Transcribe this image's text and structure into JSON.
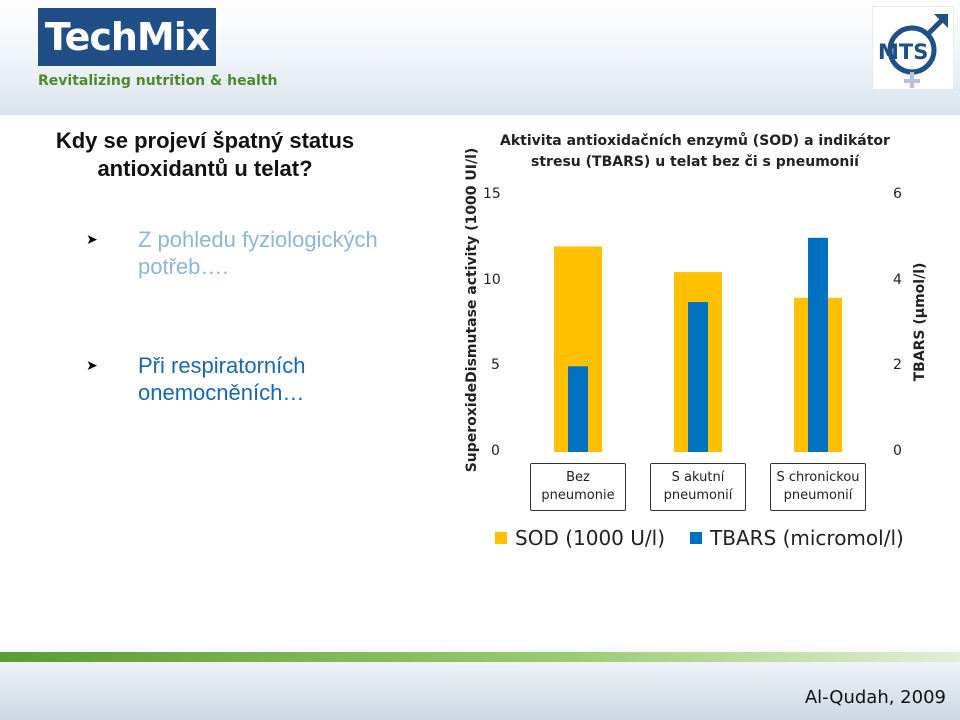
{
  "brand": {
    "logo_text": "TechMix",
    "tagline": "Revitalizing nutrition & health",
    "partner_logo": "MTS",
    "colors": {
      "navy": "#1f4f86",
      "green": "#4e8a2c"
    }
  },
  "slide": {
    "title": "Kdy se projeví špatný status antioxidantů u telat?",
    "bullets": [
      {
        "text": "Z pohledu fyziologických potřeb….",
        "color": "#8fb6d8"
      },
      {
        "text": "Při respiratorních onemocněních…",
        "color": "#1a66b0"
      }
    ],
    "citation": "Al-Qudah, 2009"
  },
  "chart_data": {
    "type": "bar",
    "title": "Aktivita antioxidačních enzymů (SOD) a indikátor stresu (TBARS) u telat bez či s pneumonií",
    "categories": [
      "Bez pneumonie",
      "S akutní pneumonií",
      "S chronickou pneumonií"
    ],
    "ylabel": "SuperoxideDismutase activity (1000 UI/l)",
    "y2label": "TBARS (µmol/l)",
    "ylim": [
      0,
      15
    ],
    "y2lim": [
      0,
      6
    ],
    "yticks": [
      0,
      5,
      10,
      15
    ],
    "y2ticks": [
      0,
      2,
      4,
      6
    ],
    "grid": false,
    "legend_position": "bottom",
    "series": [
      {
        "name": "SOD (1000 U/l)",
        "axis": "left",
        "color": "#ffc000",
        "values": [
          12.0,
          10.5,
          9.0
        ]
      },
      {
        "name": "TBARS (micromol/l)",
        "axis": "right",
        "color": "#0070c0",
        "values": [
          2.0,
          3.5,
          5.0
        ]
      }
    ]
  }
}
